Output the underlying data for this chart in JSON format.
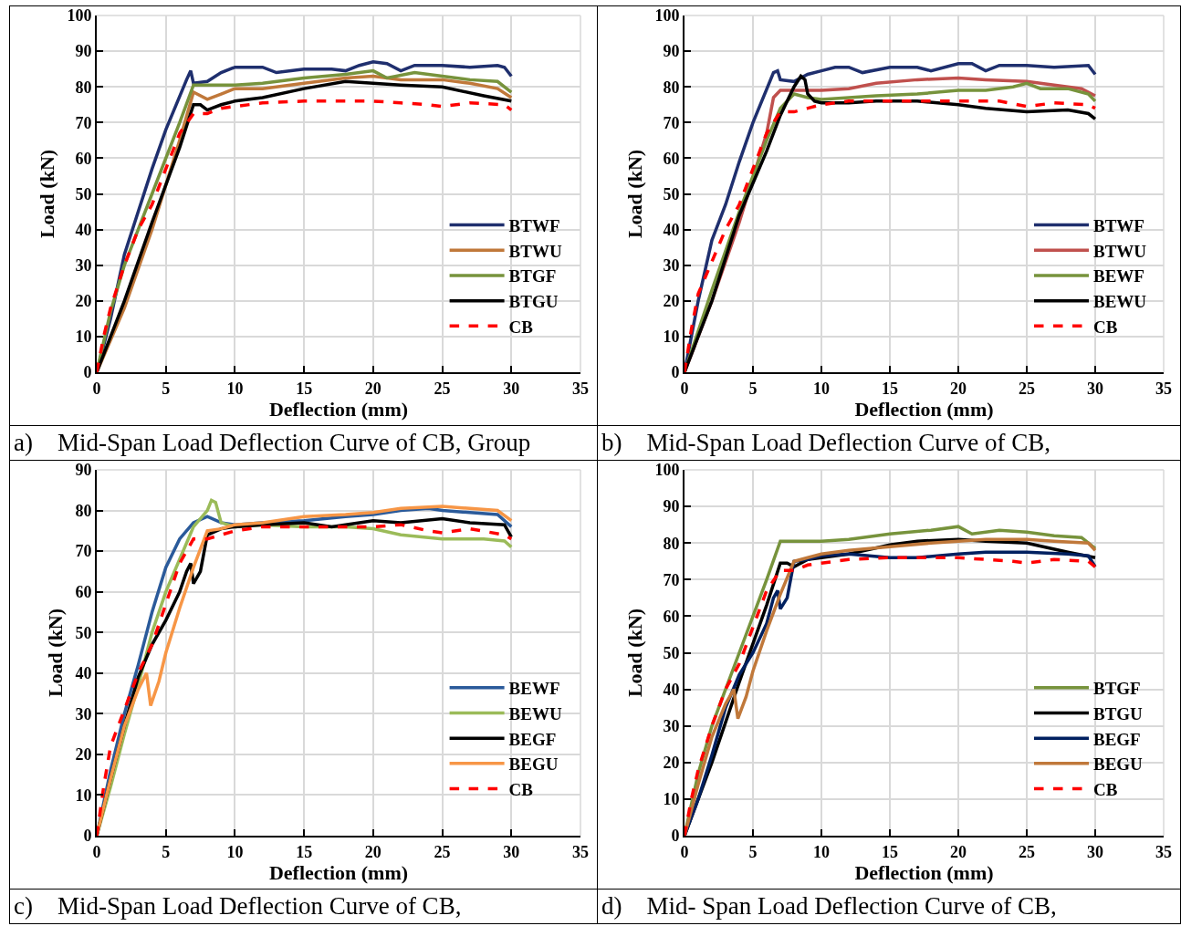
{
  "chart_data": [
    {
      "type": "line",
      "xlabel": "Deflection (mm)",
      "ylabel": "Load (kN)",
      "annotations": [
        "a)    Mid-Span Load Deflection Curve of CB, Group"
      ],
      "xlim": [
        0,
        35
      ],
      "xticks": [
        0,
        5,
        10,
        15,
        20,
        25,
        30,
        35
      ],
      "ylim": [
        0,
        100
      ],
      "yticks": [
        0,
        10,
        20,
        30,
        40,
        50,
        60,
        70,
        80,
        90,
        100
      ],
      "grid": true,
      "legend": "bottom right",
      "marker": "none",
      "series": [
        {
          "name": "BTWF",
          "color": "#1f2f6e",
          "x": [
            0,
            1,
            2,
            3,
            4,
            5,
            6.5,
            6.8,
            7,
            8,
            9,
            10,
            12,
            13,
            15,
            17,
            18,
            19,
            20,
            21,
            22,
            23,
            25,
            27,
            29,
            29.5,
            30
          ],
          "values": [
            0,
            15,
            33,
            45,
            57,
            68,
            82,
            84.5,
            81,
            81.5,
            84,
            85.5,
            85.5,
            84,
            85,
            85,
            84.5,
            86,
            87,
            86.5,
            84.5,
            86,
            86,
            85.5,
            86,
            85.5,
            83
          ]
        },
        {
          "name": "BTWU",
          "color": "#c0783a",
          "x": [
            0,
            2,
            4,
            6,
            7,
            8,
            9,
            10,
            12,
            15,
            18,
            20,
            22,
            25,
            27,
            29,
            30
          ],
          "values": [
            0,
            18,
            40,
            65,
            78.5,
            76.5,
            78,
            79.5,
            79.5,
            81,
            82.5,
            83,
            82,
            82,
            81,
            79.5,
            77
          ]
        },
        {
          "name": "BTGF",
          "color": "#77933c",
          "x": [
            0,
            1,
            2,
            4,
            6,
            7,
            8,
            10,
            12,
            15,
            18,
            20,
            21,
            23,
            25,
            27,
            29,
            30
          ],
          "values": [
            0,
            17,
            30,
            50,
            70,
            80.5,
            80.5,
            80.5,
            81,
            82.5,
            83.5,
            84.5,
            82.5,
            84,
            83,
            82,
            81.5,
            78.5
          ]
        },
        {
          "name": "BTGU",
          "color": "#000000",
          "x": [
            0,
            2,
            4,
            6,
            7,
            7.5,
            8,
            9,
            10,
            12,
            15,
            18,
            20,
            22,
            25,
            28,
            30
          ],
          "values": [
            0,
            20,
            42,
            63,
            75,
            75,
            73.5,
            75,
            76,
            77,
            79.5,
            81.5,
            81,
            80.5,
            80,
            77.5,
            76
          ]
        },
        {
          "name": "CB",
          "color": "#ff0000",
          "line_style": "dashed",
          "x": [
            0,
            0.5,
            1,
            2,
            3,
            4,
            5,
            6,
            7,
            8,
            9,
            10,
            12,
            15,
            20,
            22,
            24,
            25,
            27,
            29.5,
            30
          ],
          "values": [
            0,
            10,
            18,
            30,
            40,
            47,
            57,
            67,
            72.5,
            72.5,
            74,
            74.5,
            75.5,
            76,
            76,
            75.5,
            75,
            74.5,
            75.5,
            75,
            73.5
          ]
        }
      ]
    },
    {
      "type": "line",
      "xlabel": "Deflection (mm)",
      "ylabel": "Load (kN)",
      "annotations": [
        "b)    Mid-Span Load Deflection Curve of CB,"
      ],
      "xlim": [
        0,
        35
      ],
      "xticks": [
        0,
        5,
        10,
        15,
        20,
        25,
        30,
        35
      ],
      "ylim": [
        0,
        100
      ],
      "yticks": [
        0,
        10,
        20,
        30,
        40,
        50,
        60,
        70,
        80,
        90,
        100
      ],
      "grid": true,
      "legend": "bottom right",
      "marker": "none",
      "series": [
        {
          "name": "BTWF",
          "color": "#1f2f6e",
          "x": [
            0,
            1,
            2,
            3,
            4,
            5,
            6.5,
            6.8,
            7,
            8,
            9,
            10,
            11,
            12,
            13,
            15,
            17,
            18,
            20,
            21,
            22,
            23,
            25,
            27,
            29.5,
            30
          ],
          "values": [
            0,
            20,
            37,
            47,
            59,
            70,
            84,
            84.5,
            82,
            81.5,
            83.5,
            84.5,
            85.5,
            85.5,
            84,
            85.5,
            85.5,
            84.5,
            86.5,
            86.5,
            84.5,
            86,
            86,
            85.5,
            86,
            83.5
          ]
        },
        {
          "name": "BTWU",
          "color": "#c0504d",
          "x": [
            0,
            2,
            4,
            6,
            6.5,
            7,
            8,
            10,
            12,
            14,
            17,
            20,
            22,
            25,
            27,
            29,
            30
          ],
          "values": [
            0,
            20,
            42,
            67,
            77,
            79,
            79,
            79,
            79.5,
            81,
            82,
            82.5,
            82,
            81.5,
            80.5,
            79.5,
            77.5
          ]
        },
        {
          "name": "BEWF",
          "color": "#77933c",
          "x": [
            0,
            2,
            4,
            6,
            7,
            8,
            9,
            10,
            12,
            14,
            17,
            20,
            22,
            24,
            25,
            26,
            28,
            29.5,
            30
          ],
          "values": [
            0,
            23,
            45,
            65,
            74,
            78,
            77,
            76.5,
            77,
            77.5,
            78,
            79,
            79,
            80,
            81,
            79.5,
            79.5,
            78,
            76
          ]
        },
        {
          "name": "BEWU",
          "color": "#000000",
          "x": [
            0,
            1,
            2,
            4,
            6,
            7,
            8,
            8.5,
            8.8,
            9,
            9.5,
            10,
            12,
            14,
            17,
            20,
            22,
            25,
            28,
            29.5,
            30
          ],
          "values": [
            0,
            10,
            20,
            44,
            62,
            72,
            80,
            83,
            82,
            78,
            76,
            75.5,
            75.5,
            76,
            76,
            75,
            74,
            73,
            73.5,
            72.5,
            71
          ]
        },
        {
          "name": "CB",
          "color": "#ff0000",
          "line_style": "dashed",
          "x": [
            0,
            0.5,
            1,
            2,
            3,
            4,
            5,
            6,
            7,
            8,
            9,
            10,
            12,
            15,
            20,
            23,
            25,
            27,
            29.5,
            30
          ],
          "values": [
            0,
            12,
            22,
            31,
            40,
            47,
            57,
            67,
            73,
            73,
            74,
            75,
            76,
            76,
            76,
            76,
            74.5,
            75.5,
            75,
            74
          ]
        }
      ]
    },
    {
      "type": "line",
      "xlabel": "Deflection (mm)",
      "ylabel": "Load (kN)",
      "annotations": [
        "c)    Mid-Span Load Deflection Curve of CB,"
      ],
      "xlim": [
        0,
        35
      ],
      "xticks": [
        0,
        5,
        10,
        15,
        20,
        25,
        30,
        35
      ],
      "ylim": [
        0,
        90
      ],
      "yticks": [
        0,
        10,
        20,
        30,
        40,
        50,
        60,
        70,
        80,
        90
      ],
      "grid": true,
      "legend": "bottom right",
      "marker": "none",
      "series": [
        {
          "name": "BEWF",
          "color": "#2a5a9a",
          "x": [
            0,
            1,
            2,
            3,
            4,
            5,
            6,
            7,
            8,
            9,
            10,
            12,
            15,
            18,
            20,
            22,
            24,
            25,
            27,
            29,
            30
          ],
          "values": [
            0,
            16,
            30,
            42,
            55,
            66,
            73,
            77,
            78.5,
            77,
            76.5,
            77,
            77.5,
            78.5,
            79,
            80,
            80.5,
            80,
            79.5,
            79,
            76
          ]
        },
        {
          "name": "BEWU",
          "color": "#9bbb59",
          "x": [
            0,
            1,
            2,
            3,
            4,
            5,
            6,
            7,
            8,
            8.3,
            8.6,
            9,
            10,
            12,
            15,
            18,
            20,
            22,
            25,
            28,
            29.5,
            30
          ],
          "values": [
            0,
            12,
            25,
            37,
            50,
            60,
            68,
            76,
            80,
            82.5,
            82,
            77,
            76,
            76.5,
            76,
            76,
            75.5,
            74,
            73,
            73,
            72.5,
            71
          ]
        },
        {
          "name": "BEGF",
          "color": "#000000",
          "x": [
            0,
            1,
            2,
            3,
            4,
            5,
            6,
            6.5,
            6.8,
            7,
            7.5,
            8,
            9,
            10,
            12,
            15,
            17,
            20,
            22,
            25,
            27,
            29.5,
            30
          ],
          "values": [
            0,
            14,
            27,
            39,
            47,
            53,
            60,
            65,
            67,
            62,
            65,
            74,
            75.5,
            76,
            76.5,
            77,
            76,
            77.5,
            77,
            78,
            77,
            76.5,
            73.5
          ]
        },
        {
          "name": "BEGU",
          "color": "#f79646",
          "x": [
            0,
            1,
            2,
            3,
            3.6,
            3.9,
            4.5,
            5,
            6,
            7,
            8,
            9,
            10,
            12,
            15,
            18,
            20,
            22,
            25,
            27,
            29,
            30
          ],
          "values": [
            0,
            14,
            27,
            36,
            40,
            32,
            38,
            45,
            56,
            66,
            75,
            75.5,
            76.5,
            77,
            78.5,
            79,
            79.5,
            80.5,
            81,
            80.5,
            80,
            77.5
          ]
        },
        {
          "name": "CB",
          "color": "#ff0000",
          "line_style": "dashed",
          "x": [
            0,
            0.5,
            1,
            2,
            3,
            4,
            5,
            6,
            7,
            8,
            9,
            10,
            12,
            15,
            20,
            22,
            24,
            25,
            27,
            29.5,
            30
          ],
          "values": [
            0,
            12,
            22,
            31,
            40,
            47,
            57,
            67,
            73,
            73,
            74,
            75,
            76,
            76,
            76,
            76.5,
            75,
            74.5,
            75.5,
            74,
            73
          ]
        }
      ]
    },
    {
      "type": "line",
      "xlabel": "Deflection (mm)",
      "ylabel": "Load (kN)",
      "annotations": [
        "d)    Mid- Span Load Deflection Curve of CB,"
      ],
      "xlim": [
        0,
        35
      ],
      "xticks": [
        0,
        5,
        10,
        15,
        20,
        25,
        30,
        35
      ],
      "ylim": [
        0,
        100
      ],
      "yticks": [
        0,
        10,
        20,
        30,
        40,
        50,
        60,
        70,
        80,
        90,
        100
      ],
      "grid": true,
      "legend": "bottom right",
      "marker": "none",
      "series": [
        {
          "name": "BTGF",
          "color": "#77933c",
          "x": [
            0,
            1,
            2,
            4,
            6,
            7,
            8,
            10,
            12,
            15,
            18,
            20,
            21,
            23,
            25,
            27,
            29,
            30
          ],
          "values": [
            0,
            17,
            30,
            50,
            70,
            80.5,
            80.5,
            80.5,
            81,
            82.5,
            83.5,
            84.5,
            82.5,
            83.5,
            83,
            82,
            81.5,
            78.5
          ]
        },
        {
          "name": "BTGU",
          "color": "#000000",
          "x": [
            0,
            2,
            4,
            6,
            7,
            7.5,
            8,
            9,
            10,
            12,
            15,
            17,
            20,
            22,
            25,
            28,
            30
          ],
          "values": [
            0,
            20,
            42,
            63,
            74.5,
            74.5,
            73.5,
            75.5,
            76,
            77,
            79.5,
            80.5,
            81,
            80.5,
            80,
            77.5,
            76
          ]
        },
        {
          "name": "BEGF",
          "color": "#002060",
          "x": [
            0,
            1,
            2,
            3,
            4,
            5,
            6,
            6.5,
            6.8,
            7,
            7.5,
            8,
            9,
            10,
            12,
            15,
            17,
            20,
            22,
            25,
            28,
            29.5,
            30
          ],
          "values": [
            0,
            10,
            22,
            35,
            44,
            50,
            58,
            65,
            67,
            62,
            65,
            75,
            75.5,
            76.5,
            77,
            76,
            76,
            77,
            77.5,
            77.5,
            77,
            76.5,
            73.5
          ]
        },
        {
          "name": "BEGU",
          "color": "#c0783a",
          "x": [
            0,
            1,
            2,
            3,
            3.6,
            3.9,
            4.5,
            5,
            6,
            7,
            8,
            9,
            10,
            12,
            15,
            18,
            20,
            22,
            25,
            27,
            29.5,
            30
          ],
          "values": [
            0,
            14,
            27,
            36,
            40,
            32,
            38,
            45,
            56,
            66,
            75,
            76,
            77,
            78,
            79,
            80,
            80.5,
            81,
            81,
            80.5,
            80,
            78
          ]
        },
        {
          "name": "CB",
          "color": "#ff0000",
          "line_style": "dashed",
          "x": [
            0,
            0.5,
            1,
            2,
            3,
            4,
            5,
            6,
            7,
            8,
            9,
            10,
            12,
            15,
            20,
            22,
            24,
            25,
            27,
            29.5,
            30
          ],
          "values": [
            0,
            10,
            18,
            30,
            40,
            47,
            57,
            67,
            72.5,
            72.5,
            74,
            74.5,
            75.5,
            76,
            76,
            75.5,
            75,
            74.5,
            75.5,
            75,
            73.5
          ]
        }
      ]
    }
  ]
}
